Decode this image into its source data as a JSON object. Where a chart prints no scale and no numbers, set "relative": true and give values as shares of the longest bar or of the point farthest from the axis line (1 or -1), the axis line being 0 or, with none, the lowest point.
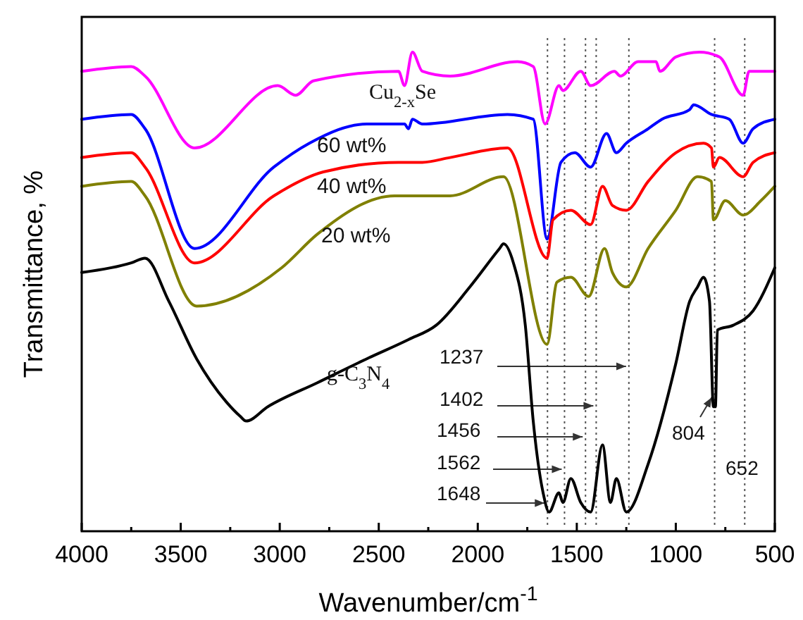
{
  "chart_data": {
    "type": "line",
    "relative": true,
    "xlabel": "Wavenumber/cm$^{-1}$",
    "ylabel": "Transmittance, %",
    "grid": false,
    "marker": "none",
    "line_style": "solid",
    "xlim": [
      4000,
      500
    ],
    "xticks": [
      4000,
      {
        "value": 3750,
        "label": null
      },
      3500,
      {
        "value": 3250,
        "label": null
      },
      3000,
      {
        "value": 2750,
        "label": null
      },
      2500,
      {
        "value": 2250,
        "label": null
      },
      2000,
      {
        "value": 1750,
        "label": null
      },
      1500,
      {
        "value": 1250,
        "label": null
      },
      1000,
      {
        "value": 750,
        "label": null
      },
      500
    ],
    "series": [
      {
        "name": "Cu$_{2-x}$Se",
        "color": "#ff00ff",
        "x": [
          4000,
          3750,
          3680,
          3430,
          3010,
          2920,
          2830,
          2400,
          2370,
          2330,
          2280,
          2140,
          1800,
          1720,
          1660,
          1590,
          1570,
          1480,
          1430,
          1310,
          1280,
          1190,
          1100,
          1080,
          1000,
          880,
          780,
          660,
          630,
          500
        ],
        "values": [
          0.96,
          0.97,
          0.95,
          0.8,
          0.93,
          0.91,
          0.94,
          0.96,
          0.93,
          1.0,
          0.96,
          0.95,
          0.98,
          0.97,
          0.85,
          0.93,
          0.92,
          0.96,
          0.93,
          0.96,
          0.95,
          0.98,
          0.98,
          0.96,
          0.99,
          1.0,
          0.99,
          0.91,
          0.96,
          0.96
        ]
      },
      {
        "name": "60 wt%",
        "color": "#0000ff",
        "x": [
          4000,
          3750,
          3680,
          3430,
          3030,
          2850,
          2560,
          2370,
          2350,
          2330,
          2280,
          1850,
          1720,
          1650,
          1580,
          1510,
          1430,
          1350,
          1300,
          1250,
          1140,
          1070,
          930,
          910,
          820,
          730,
          660,
          610,
          500
        ],
        "values": [
          0.86,
          0.87,
          0.84,
          0.59,
          0.76,
          0.81,
          0.85,
          0.85,
          0.84,
          0.86,
          0.85,
          0.87,
          0.86,
          0.61,
          0.77,
          0.79,
          0.76,
          0.83,
          0.79,
          0.81,
          0.84,
          0.86,
          0.88,
          0.89,
          0.87,
          0.86,
          0.81,
          0.84,
          0.86
        ]
      },
      {
        "name": "40 wt%",
        "color": "#ff0000",
        "x": [
          4000,
          3750,
          3680,
          3430,
          3030,
          2780,
          2400,
          2280,
          2140,
          1850,
          1650,
          1620,
          1530,
          1430,
          1370,
          1320,
          1250,
          1140,
          1000,
          860,
          820,
          810,
          780,
          660,
          610,
          500
        ],
        "values": [
          0.78,
          0.79,
          0.76,
          0.56,
          0.7,
          0.75,
          0.77,
          0.77,
          0.78,
          0.8,
          0.57,
          0.65,
          0.67,
          0.64,
          0.72,
          0.68,
          0.67,
          0.73,
          0.79,
          0.81,
          0.8,
          0.76,
          0.78,
          0.74,
          0.77,
          0.79
        ]
      },
      {
        "name": "20 wt%",
        "color": "#808000",
        "x": [
          4000,
          3750,
          3680,
          3420,
          2990,
          2810,
          2420,
          2140,
          1870,
          1650,
          1600,
          1530,
          1440,
          1360,
          1320,
          1250,
          1140,
          1000,
          890,
          820,
          810,
          750,
          660,
          570,
          500
        ],
        "values": [
          0.72,
          0.73,
          0.7,
          0.47,
          0.55,
          0.62,
          0.7,
          0.7,
          0.74,
          0.39,
          0.52,
          0.53,
          0.49,
          0.59,
          0.54,
          0.51,
          0.59,
          0.67,
          0.74,
          0.73,
          0.65,
          0.69,
          0.66,
          0.69,
          0.72
        ]
      },
      {
        "name": "g-C$_{3}$N$_{4}$",
        "color": "#000000",
        "x": [
          4000,
          3750,
          3680,
          3560,
          3420,
          3270,
          3200,
          3170,
          3060,
          2810,
          2560,
          2350,
          2210,
          2040,
          1890,
          1870,
          1820,
          1760,
          1720,
          1670,
          1640,
          1590,
          1570,
          1530,
          1480,
          1430,
          1370,
          1330,
          1300,
          1250,
          1140,
          1000,
          930,
          890,
          860,
          830,
          810,
          800,
          790,
          710,
          610,
          500
        ],
        "values": [
          0.54,
          0.56,
          0.57,
          0.48,
          0.36,
          0.27,
          0.24,
          0.23,
          0.26,
          0.31,
          0.36,
          0.4,
          0.43,
          0.51,
          0.59,
          0.6,
          0.56,
          0.43,
          0.23,
          0.08,
          0.04,
          0.08,
          0.06,
          0.11,
          0.06,
          0.04,
          0.18,
          0.06,
          0.11,
          0.04,
          0.14,
          0.35,
          0.48,
          0.51,
          0.53,
          0.48,
          0.26,
          0.26,
          0.42,
          0.43,
          0.46,
          0.55
        ]
      }
    ],
    "ref_lines": [
      {
        "axis": "x",
        "value": 1648,
        "label": "1648",
        "line_style": "dotted",
        "color": "#555555"
      },
      {
        "axis": "x",
        "value": 1562,
        "label": "1562",
        "line_style": "dotted",
        "color": "#555555"
      },
      {
        "axis": "x",
        "value": 1456,
        "label": "1456",
        "line_style": "dotted",
        "color": "#555555"
      },
      {
        "axis": "x",
        "value": 1402,
        "label": "1402",
        "line_style": "dotted",
        "color": "#555555"
      },
      {
        "axis": "x",
        "value": 1237,
        "label": "1237",
        "line_style": "dotted",
        "color": "#555555"
      },
      {
        "axis": "x",
        "value": 804,
        "label": "804",
        "line_style": "dotted",
        "color": "#555555"
      },
      {
        "axis": "x",
        "value": 652,
        "label": "652",
        "line_style": "dotted",
        "color": "#555555"
      }
    ]
  }
}
